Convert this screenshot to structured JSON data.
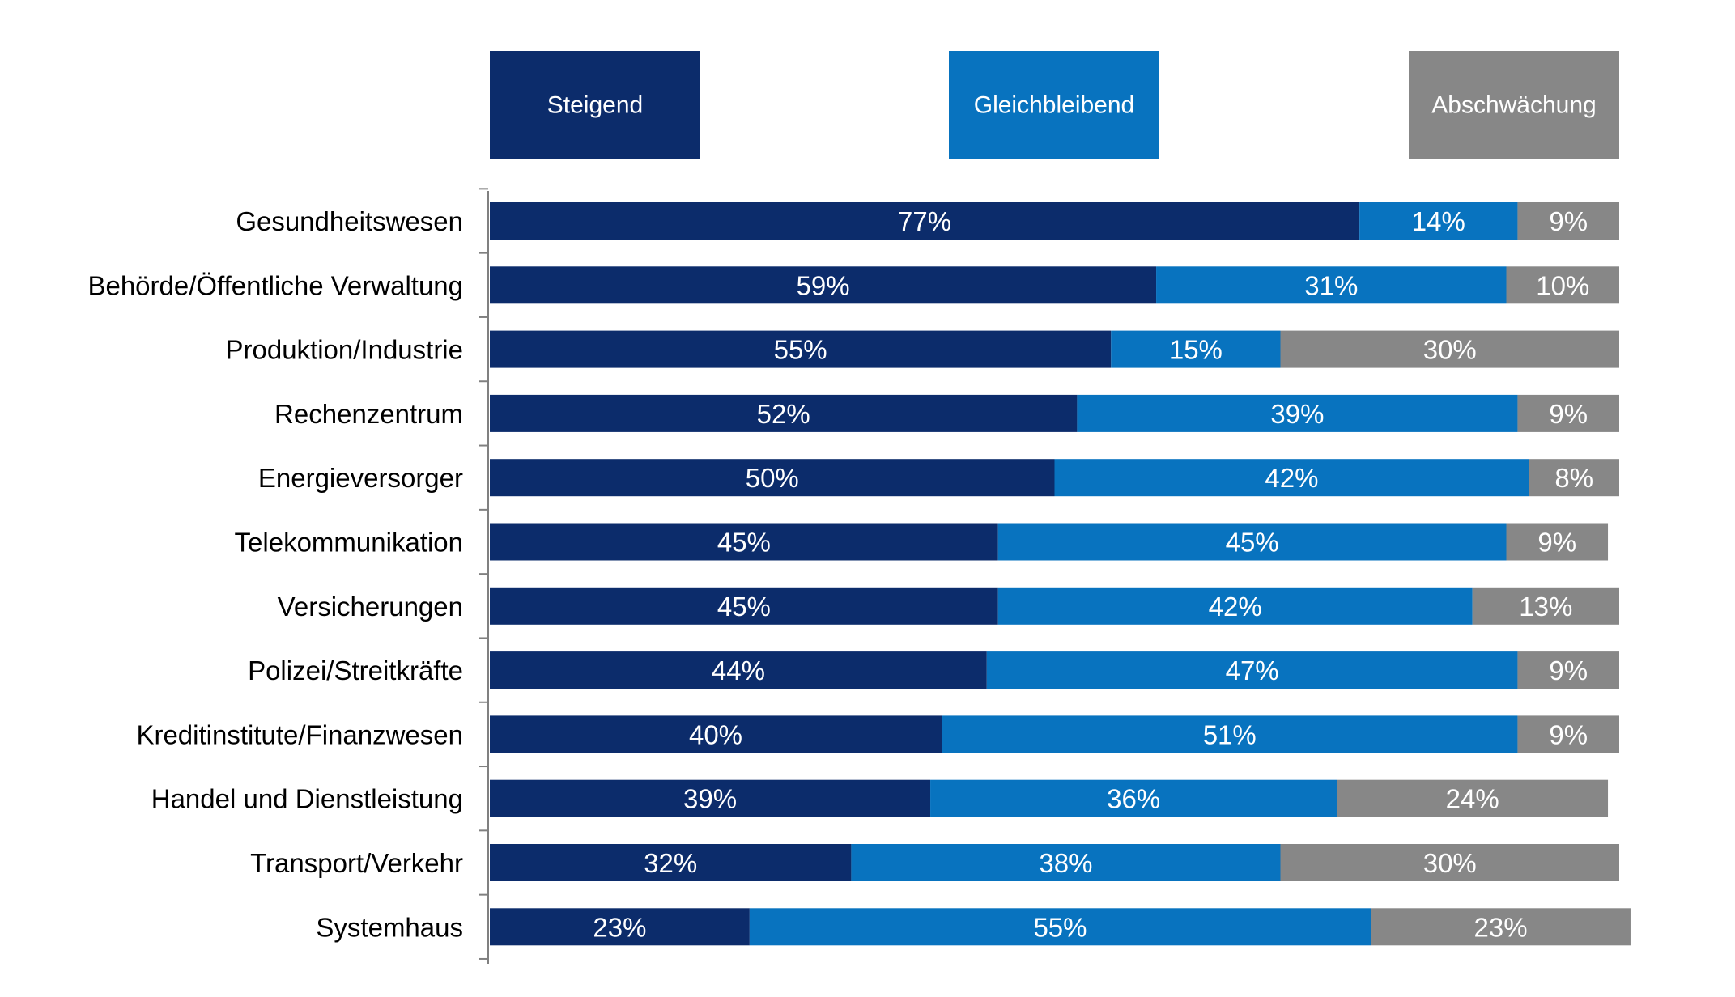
{
  "chart_data": {
    "type": "bar",
    "orientation": "horizontal",
    "stacked": true,
    "legend_position": "top",
    "categories": [
      "Gesundheitswesen",
      "Behörde/Öffentliche Verwaltung",
      "Produktion/Industrie",
      "Rechenzentrum",
      "Energieversorger",
      "Telekommunikation",
      "Versicherungen",
      "Polizei/Streitkräfte",
      "Kreditinstitute/Finanzwesen",
      "Handel und Dienstleistung",
      "Transport/Verkehr",
      "Systemhaus"
    ],
    "series": [
      {
        "name": "Steigend",
        "color": "#0c2c6b",
        "values": [
          77,
          59,
          55,
          52,
          50,
          45,
          45,
          44,
          40,
          39,
          32,
          23
        ]
      },
      {
        "name": "Gleichbleibend",
        "color": "#0873bf",
        "values": [
          14,
          31,
          15,
          39,
          42,
          45,
          42,
          47,
          51,
          36,
          38,
          55
        ]
      },
      {
        "name": "Abschwächung",
        "color": "#878787",
        "values": [
          9,
          10,
          30,
          9,
          8,
          9,
          13,
          9,
          9,
          24,
          30,
          23
        ]
      }
    ],
    "value_suffix": "%",
    "grid": false
  }
}
